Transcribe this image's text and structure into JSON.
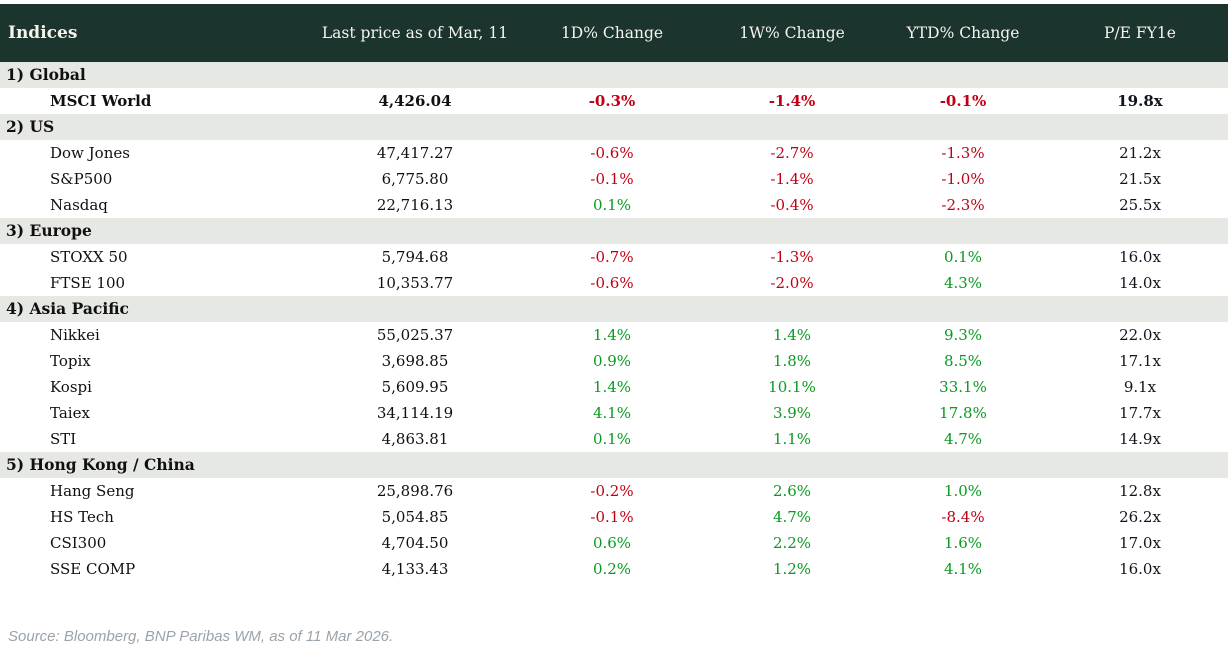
{
  "chart_data": {
    "type": "table",
    "title": "Indices",
    "columns": [
      "Indices",
      "Last price as of Mar, 11",
      "1D% Change",
      "1W% Change",
      "YTD% Change",
      "P/E FY1e"
    ],
    "sections": [
      {
        "label": "1) Global",
        "rows": [
          [
            "MSCI World",
            "4,426.04",
            "-0.3%",
            "-1.4%",
            "-0.1%",
            "19.8x"
          ]
        ]
      },
      {
        "label": "2) US",
        "rows": [
          [
            "Dow Jones",
            "47,417.27",
            "-0.6%",
            "-2.7%",
            "-1.3%",
            "21.2x"
          ],
          [
            "S&P500",
            "6,775.80",
            "-0.1%",
            "-1.4%",
            "-1.0%",
            "21.5x"
          ],
          [
            "Nasdaq",
            "22,716.13",
            "0.1%",
            "-0.4%",
            "-2.3%",
            "25.5x"
          ]
        ]
      },
      {
        "label": "3) Europe",
        "rows": [
          [
            "STOXX 50",
            "5,794.68",
            "-0.7%",
            "-1.3%",
            "0.1%",
            "16.0x"
          ],
          [
            "FTSE 100",
            "10,353.77",
            "-0.6%",
            "-2.0%",
            "4.3%",
            "14.0x"
          ]
        ]
      },
      {
        "label": "4) Asia Pacific",
        "rows": [
          [
            "Nikkei",
            "55,025.37",
            "1.4%",
            "1.4%",
            "9.3%",
            "22.0x"
          ],
          [
            "Topix",
            "3,698.85",
            "0.9%",
            "1.8%",
            "8.5%",
            "17.1x"
          ],
          [
            "Kospi",
            "5,609.95",
            "1.4%",
            "10.1%",
            "33.1%",
            "9.1x"
          ],
          [
            "Taiex",
            "34,114.19",
            "4.1%",
            "3.9%",
            "17.8%",
            "17.7x"
          ],
          [
            "STI",
            "4,863.81",
            "0.1%",
            "1.1%",
            "4.7%",
            "14.9x"
          ]
        ]
      },
      {
        "label": "5) Hong Kong / China",
        "rows": [
          [
            "Hang Seng",
            "25,898.76",
            "-0.2%",
            "2.6%",
            "1.0%",
            "12.8x"
          ],
          [
            "HS Tech",
            "5,054.85",
            "-0.1%",
            "4.7%",
            "-8.4%",
            "26.2x"
          ],
          [
            "CSI300",
            "4,704.50",
            "0.6%",
            "2.2%",
            "1.6%",
            "17.0x"
          ],
          [
            "SSE COMP",
            "4,133.43",
            "0.2%",
            "1.2%",
            "4.1%",
            "16.0x"
          ]
        ]
      }
    ],
    "bold_rows": [
      "MSCI World"
    ],
    "footnote": "Source: Bloomberg, BNP Paribas WM, as of 11 Mar 2026."
  },
  "colors": {
    "header_bg": "#1c342e",
    "header_text": "#f5f3ee",
    "section_bg": "#e6e8e3",
    "negative": "#c00114",
    "positive": "#089b20",
    "pe_text": "#10151d",
    "footer_text": "#9aa3ab"
  }
}
